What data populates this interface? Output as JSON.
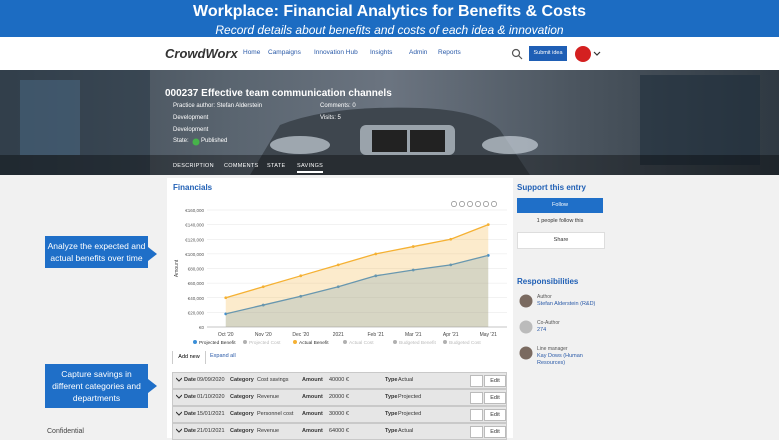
{
  "banner": {
    "title": "Workplace: Financial Analytics for Benefits & Costs",
    "subtitle": "Record details about benefits and costs of each idea & innovation"
  },
  "nav": {
    "logo": "CrowdWorx",
    "links": [
      "Home",
      "Campaigns",
      "Innovation Hub",
      "Insights",
      "Admin",
      "Reports"
    ],
    "button": "Submit idea"
  },
  "idea": {
    "title": "000237 Effective team communication channels",
    "author": "Practice author: Stefan Alderstein",
    "comments": "Comments: 0",
    "visits": "Visits: 5",
    "phase": "Development",
    "category": "Development",
    "state_label": "State:",
    "state": "Published",
    "tabs": [
      "DESCRIPTION",
      "COMMENTS",
      "STATE",
      "SAVINGS"
    ]
  },
  "financials": {
    "title": "Financials",
    "add": "Add new",
    "expand": "Expand all"
  },
  "chart_data": {
    "type": "line",
    "y_label": "Amount",
    "categories": [
      "Oct '20",
      "Nov '20",
      "Dec '20",
      "2021",
      "Feb '21",
      "Mar '21",
      "Apr '21",
      "May '21"
    ],
    "ylim": [
      0,
      160000
    ],
    "yticks": [
      {
        "value": 0,
        "label": "€0"
      },
      {
        "value": 20000,
        "label": "€20,000"
      },
      {
        "value": 40000,
        "label": "€40,000"
      },
      {
        "value": 60000,
        "label": "€60,000"
      },
      {
        "value": 80000,
        "label": "€80,000"
      },
      {
        "value": 100000,
        "label": "€100,000"
      },
      {
        "value": 120000,
        "label": "€120,000"
      },
      {
        "value": 140000,
        "label": "€140,000"
      },
      {
        "value": 160000,
        "label": "€160,000"
      }
    ],
    "grid": true,
    "series": [
      {
        "name": "Projected Benefit",
        "color": "#3a8fd8",
        "visible": true,
        "values": [
          18000,
          30000,
          42000,
          55000,
          70000,
          78000,
          85000,
          98000
        ]
      },
      {
        "name": "Projected Cost",
        "color": "#b0b0b0",
        "visible": false,
        "values": [
          null,
          null,
          null,
          null,
          null,
          null,
          null,
          null
        ]
      },
      {
        "name": "Actual Benefit",
        "color": "#f5b133",
        "visible": true,
        "values": [
          40000,
          55000,
          70000,
          85000,
          100000,
          110000,
          120000,
          140000
        ]
      },
      {
        "name": "Actual Cost",
        "color": "#b0b0b0",
        "visible": false,
        "values": [
          null,
          null,
          null,
          null,
          null,
          null,
          null,
          null
        ]
      },
      {
        "name": "Budgeted Benefit",
        "color": "#b0b0b0",
        "visible": false,
        "values": [
          null,
          null,
          null,
          null,
          null,
          null,
          null,
          null
        ]
      },
      {
        "name": "Budgeted Cost",
        "color": "#b0b0b0",
        "visible": false,
        "values": [
          null,
          null,
          null,
          null,
          null,
          null,
          null,
          null
        ]
      }
    ]
  },
  "table": {
    "columns": [
      "Date",
      "Category",
      "Amount",
      "Type"
    ],
    "action": "Edit",
    "rows": [
      [
        "09/09/2020",
        "Cost savings",
        "40000 €",
        "Actual"
      ],
      [
        "01/10/2020",
        "Revenue",
        "20000 €",
        "Projected"
      ],
      [
        "15/01/2021",
        "Personnel cost",
        "30000 €",
        "Projected"
      ],
      [
        "21/01/2021",
        "Revenue",
        "64000 €",
        "Actual"
      ]
    ]
  },
  "support": {
    "title": "Support this entry",
    "follow": "Follow",
    "followers": "1 people follow this",
    "share": "Share"
  },
  "responsibilities": {
    "title": "Responsibilities",
    "people": [
      {
        "role": "Author",
        "name": "Stefan Alderstein (R&D)"
      },
      {
        "role": "Co-Author",
        "name": "274"
      },
      {
        "role": "Line manager",
        "name": "Kay Dows (Human Resources)"
      }
    ]
  },
  "callouts": [
    "Analyze the expected and actual benefits over time",
    "Capture savings in different categories and departments"
  ],
  "footer": "Confidential"
}
